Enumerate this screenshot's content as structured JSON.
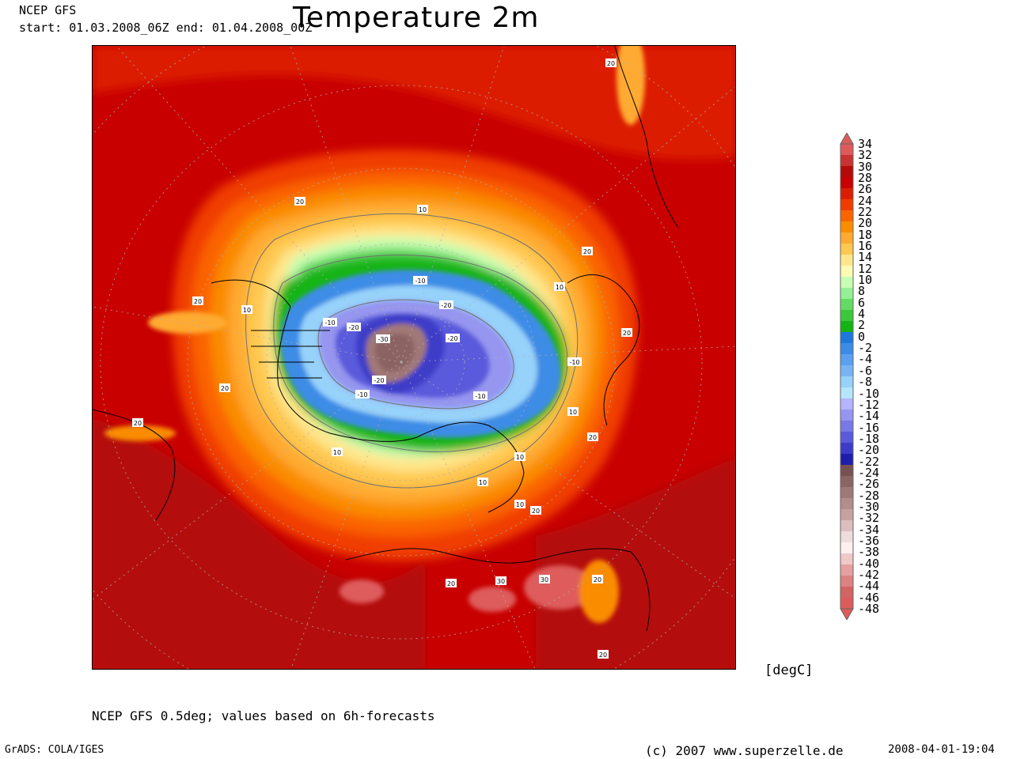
{
  "header": {
    "source": "NCEP GFS",
    "period": "start: 01.03.2008_06Z  end: 01.04.2008_00Z",
    "title": "Temperature 2m"
  },
  "legend": {
    "unit": "[degC]",
    "levels": [
      "34",
      "32",
      "30",
      "28",
      "26",
      "24",
      "22",
      "20",
      "18",
      "16",
      "14",
      "12",
      "10",
      "8",
      "6",
      "4",
      "2",
      "0",
      "-2",
      "-4",
      "-6",
      "-8",
      "-10",
      "-12",
      "-14",
      "-16",
      "-18",
      "-20",
      "-22",
      "-24",
      "-26",
      "-28",
      "-30",
      "-32",
      "-34",
      "-36",
      "-38",
      "-40",
      "-42",
      "-44",
      "-46",
      "-48"
    ],
    "colors": [
      "#de5b5b",
      "#c83232",
      "#b40a0a",
      "#c80000",
      "#dc1e00",
      "#f03c00",
      "#fa6400",
      "#fa8c00",
      "#ffaa32",
      "#ffc850",
      "#ffe68c",
      "#fffab4",
      "#c8ffb4",
      "#96f096",
      "#64dc64",
      "#3cc83c",
      "#14b414",
      "#1e78dc",
      "#3c8ce6",
      "#5aa0f0",
      "#78b4f5",
      "#96d2fa",
      "#b4e6ff",
      "#b4b4ff",
      "#9696f0",
      "#7878e6",
      "#5a5adc",
      "#3c3cc8",
      "#1e1eaa",
      "#785050",
      "#8c6464",
      "#a07878",
      "#b48c8c",
      "#c8a0a0",
      "#dcbebe",
      "#f0dcdc",
      "#fff0f0",
      "#f0c8c8",
      "#e6a0a0",
      "#dc8282",
      "#d26464",
      "#de5b5b"
    ]
  },
  "map": {
    "contour_labels": [
      "20",
      "20",
      "20",
      "20",
      "20",
      "20",
      "20",
      "20",
      "20",
      "20",
      "20",
      "20",
      "30",
      "30",
      "10",
      "10",
      "10",
      "10",
      "10",
      "10",
      "10",
      "10",
      "-10",
      "-10",
      "-10",
      "-10",
      "-10",
      "-20",
      "-20",
      "-20",
      "-20",
      "-30"
    ]
  },
  "footer": {
    "caption": "NCEP GFS 0.5deg; values based on 6h-forecasts",
    "software": "GrADS: COLA/IGES",
    "copyright": "(c) 2007 www.superzelle.de",
    "timestamp": "2008-04-01-19:04"
  }
}
